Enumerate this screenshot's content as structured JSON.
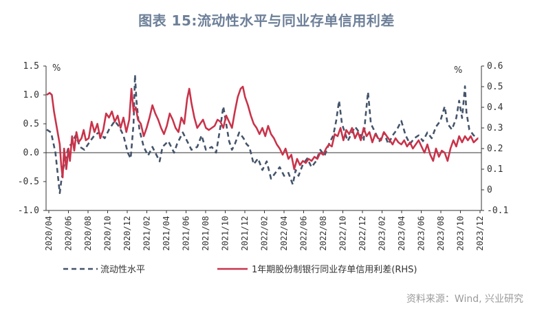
{
  "title": "图表 15:流动性水平与同业存单信用利差",
  "source": "资料来源：Wind, 兴业研究",
  "chart_data": {
    "type": "line",
    "ylabel_left_unit": "%",
    "ylabel_right_unit": "%",
    "ylim_left": [
      -1.0,
      1.5
    ],
    "ylim_right": [
      -0.1,
      0.6
    ],
    "yticks_left": [
      "1.5",
      "1.0",
      "0.5",
      "0.0",
      "-0.5",
      "-1.0"
    ],
    "yticks_right": [
      "0.6",
      "0.5",
      "0.4",
      "0.3",
      "0.2",
      "0.1",
      "0",
      "-0.1"
    ],
    "x_categories": [
      "2020/04",
      "2020/06",
      "2020/08",
      "2020/10",
      "2020/12",
      "2021/02",
      "2021/04",
      "2021/06",
      "2021/08",
      "2021/10",
      "2021/12",
      "2022/02",
      "2022/04",
      "2022/06",
      "2022/08",
      "2022/10",
      "2022/12",
      "2023/02",
      "2023/04",
      "2023/06",
      "2023/08",
      "2023/10",
      "2023/12"
    ],
    "legend_position": "bottom",
    "series": [
      {
        "name": "流动性水平",
        "axis": "left",
        "style": "dashed",
        "color": "#44546a",
        "points": [
          [
            0.0,
            0.4
          ],
          [
            0.3,
            0.35
          ],
          [
            0.6,
            0.0
          ],
          [
            0.9,
            -0.7
          ],
          [
            1.0,
            -0.5
          ],
          [
            1.2,
            -0.2
          ],
          [
            1.5,
            0.1
          ],
          [
            1.7,
            0.15
          ],
          [
            2.0,
            0.3
          ],
          [
            2.3,
            0.1
          ],
          [
            2.6,
            0.05
          ],
          [
            3.0,
            0.2
          ],
          [
            3.3,
            0.3
          ],
          [
            3.6,
            0.35
          ],
          [
            4.0,
            0.25
          ],
          [
            4.3,
            0.4
          ],
          [
            4.7,
            0.55
          ],
          [
            5.0,
            0.45
          ],
          [
            5.3,
            0.3
          ],
          [
            5.6,
            0.0
          ],
          [
            5.8,
            -0.1
          ],
          [
            6.0,
            0.5
          ],
          [
            6.1,
            1.35
          ],
          [
            6.2,
            0.9
          ],
          [
            6.4,
            0.4
          ],
          [
            6.7,
            0.1
          ],
          [
            7.0,
            -0.05
          ],
          [
            7.3,
            0.1
          ],
          [
            7.5,
            0.0
          ],
          [
            7.8,
            -0.15
          ],
          [
            8.0,
            0.1
          ],
          [
            8.4,
            0.2
          ],
          [
            8.8,
            0.0
          ],
          [
            9.0,
            0.15
          ],
          [
            9.4,
            0.35
          ],
          [
            9.7,
            0.2
          ],
          [
            10.0,
            0.05
          ],
          [
            10.4,
            0.1
          ],
          [
            10.7,
            0.3
          ],
          [
            11.0,
            0.05
          ],
          [
            11.4,
            0.1
          ],
          [
            11.7,
            0.0
          ],
          [
            12.0,
            0.45
          ],
          [
            12.2,
            0.8
          ],
          [
            12.4,
            0.5
          ],
          [
            12.6,
            0.2
          ],
          [
            12.8,
            0.05
          ],
          [
            13.0,
            0.15
          ],
          [
            13.3,
            0.35
          ],
          [
            13.6,
            0.25
          ],
          [
            13.8,
            0.15
          ],
          [
            14.0,
            0.1
          ],
          [
            14.3,
            -0.2
          ],
          [
            14.6,
            -0.1
          ],
          [
            14.9,
            -0.3
          ],
          [
            15.2,
            -0.15
          ],
          [
            15.5,
            -0.45
          ],
          [
            15.8,
            -0.35
          ],
          [
            16.1,
            -0.25
          ],
          [
            16.4,
            -0.4
          ],
          [
            16.7,
            -0.35
          ],
          [
            17.0,
            -0.55
          ],
          [
            17.2,
            -0.3
          ],
          [
            17.4,
            -0.4
          ],
          [
            17.7,
            -0.2
          ],
          [
            18.0,
            -0.1
          ],
          [
            18.3,
            -0.25
          ],
          [
            18.6,
            -0.15
          ],
          [
            18.9,
            0.05
          ],
          [
            19.2,
            -0.05
          ],
          [
            19.5,
            0.15
          ],
          [
            19.8,
            0.3
          ],
          [
            20.0,
            0.55
          ],
          [
            20.2,
            0.9
          ],
          [
            20.4,
            0.5
          ],
          [
            20.6,
            0.35
          ],
          [
            20.8,
            0.2
          ],
          [
            21.0,
            0.3
          ],
          [
            21.3,
            0.45
          ],
          [
            21.6,
            0.35
          ],
          [
            21.9,
            0.2
          ],
          [
            22.0,
            0.55
          ],
          [
            22.2,
            1.05
          ],
          [
            22.4,
            0.5
          ],
          [
            22.7,
            0.35
          ],
          [
            23.0,
            0.2
          ],
          [
            23.3,
            0.35
          ],
          [
            23.6,
            0.15
          ],
          [
            23.9,
            0.3
          ],
          [
            24.2,
            0.4
          ],
          [
            24.5,
            0.55
          ],
          [
            24.8,
            0.3
          ],
          [
            25.1,
            0.15
          ],
          [
            25.4,
            0.25
          ],
          [
            25.7,
            0.3
          ],
          [
            26.0,
            0.2
          ],
          [
            26.3,
            0.35
          ],
          [
            26.6,
            0.25
          ],
          [
            26.9,
            0.45
          ],
          [
            27.2,
            0.55
          ],
          [
            27.5,
            0.8
          ],
          [
            27.7,
            0.5
          ],
          [
            28.0,
            0.4
          ],
          [
            28.3,
            0.6
          ],
          [
            28.5,
            0.9
          ],
          [
            28.7,
            0.6
          ],
          [
            28.9,
            1.15
          ],
          [
            29.0,
            0.7
          ],
          [
            29.2,
            0.4
          ],
          [
            29.5,
            0.3
          ],
          [
            29.8,
            0.25
          ]
        ]
      },
      {
        "name": "1年期股份制银行同业存单信用利差(RHS)",
        "axis": "right",
        "style": "solid",
        "color": "#c9334a",
        "points": [
          [
            0.0,
            0.46
          ],
          [
            0.2,
            0.47
          ],
          [
            0.35,
            0.46
          ],
          [
            0.5,
            0.38
          ],
          [
            0.7,
            0.3
          ],
          [
            0.9,
            0.22
          ],
          [
            1.0,
            0.12
          ],
          [
            1.1,
            0.06
          ],
          [
            1.2,
            0.2
          ],
          [
            1.35,
            0.1
          ],
          [
            1.5,
            0.2
          ],
          [
            1.6,
            0.14
          ],
          [
            1.75,
            0.26
          ],
          [
            1.9,
            0.19
          ],
          [
            2.05,
            0.28
          ],
          [
            2.2,
            0.23
          ],
          [
            2.4,
            0.25
          ],
          [
            2.55,
            0.29
          ],
          [
            2.7,
            0.24
          ],
          [
            2.9,
            0.25
          ],
          [
            3.1,
            0.33
          ],
          [
            3.3,
            0.28
          ],
          [
            3.5,
            0.32
          ],
          [
            3.7,
            0.25
          ],
          [
            3.9,
            0.29
          ],
          [
            4.1,
            0.37
          ],
          [
            4.3,
            0.35
          ],
          [
            4.5,
            0.38
          ],
          [
            4.7,
            0.33
          ],
          [
            4.9,
            0.36
          ],
          [
            5.1,
            0.3
          ],
          [
            5.3,
            0.35
          ],
          [
            5.5,
            0.28
          ],
          [
            5.7,
            0.34
          ],
          [
            5.85,
            0.49
          ],
          [
            6.0,
            0.38
          ],
          [
            6.15,
            0.4
          ],
          [
            6.3,
            0.34
          ],
          [
            6.5,
            0.32
          ],
          [
            6.7,
            0.26
          ],
          [
            6.9,
            0.3
          ],
          [
            7.1,
            0.35
          ],
          [
            7.3,
            0.41
          ],
          [
            7.5,
            0.37
          ],
          [
            7.7,
            0.34
          ],
          [
            7.9,
            0.3
          ],
          [
            8.1,
            0.27
          ],
          [
            8.3,
            0.31
          ],
          [
            8.5,
            0.37
          ],
          [
            8.7,
            0.34
          ],
          [
            8.9,
            0.3
          ],
          [
            9.1,
            0.28
          ],
          [
            9.3,
            0.35
          ],
          [
            9.5,
            0.32
          ],
          [
            9.7,
            0.44
          ],
          [
            9.85,
            0.49
          ],
          [
            10.0,
            0.42
          ],
          [
            10.2,
            0.35
          ],
          [
            10.4,
            0.3
          ],
          [
            10.6,
            0.32
          ],
          [
            10.8,
            0.34
          ],
          [
            11.0,
            0.3
          ],
          [
            11.2,
            0.29
          ],
          [
            11.4,
            0.3
          ],
          [
            11.6,
            0.31
          ],
          [
            11.8,
            0.34
          ],
          [
            12.0,
            0.33
          ],
          [
            12.2,
            0.3
          ],
          [
            12.4,
            0.36
          ],
          [
            12.6,
            0.33
          ],
          [
            12.8,
            0.3
          ],
          [
            13.0,
            0.38
          ],
          [
            13.2,
            0.45
          ],
          [
            13.4,
            0.49
          ],
          [
            13.55,
            0.5
          ],
          [
            13.7,
            0.45
          ],
          [
            13.9,
            0.41
          ],
          [
            14.1,
            0.36
          ],
          [
            14.3,
            0.32
          ],
          [
            14.5,
            0.3
          ],
          [
            14.7,
            0.27
          ],
          [
            14.9,
            0.3
          ],
          [
            15.1,
            0.26
          ],
          [
            15.3,
            0.31
          ],
          [
            15.5,
            0.27
          ],
          [
            15.7,
            0.25
          ],
          [
            15.9,
            0.22
          ],
          [
            16.1,
            0.2
          ],
          [
            16.3,
            0.17
          ],
          [
            16.5,
            0.2
          ],
          [
            16.7,
            0.15
          ],
          [
            16.9,
            0.17
          ],
          [
            17.1,
            0.1
          ],
          [
            17.3,
            0.15
          ],
          [
            17.5,
            0.12
          ],
          [
            17.7,
            0.14
          ],
          [
            17.9,
            0.13
          ],
          [
            18.1,
            0.15
          ],
          [
            18.3,
            0.14
          ],
          [
            18.5,
            0.16
          ],
          [
            18.7,
            0.15
          ],
          [
            18.9,
            0.18
          ],
          [
            19.1,
            0.17
          ],
          [
            19.3,
            0.2
          ],
          [
            19.5,
            0.22
          ],
          [
            19.7,
            0.21
          ],
          [
            19.9,
            0.27
          ],
          [
            20.1,
            0.26
          ],
          [
            20.3,
            0.3
          ],
          [
            20.5,
            0.24
          ],
          [
            20.7,
            0.29
          ],
          [
            20.9,
            0.27
          ],
          [
            21.1,
            0.3
          ],
          [
            21.3,
            0.25
          ],
          [
            21.5,
            0.28
          ],
          [
            21.7,
            0.24
          ],
          [
            21.9,
            0.3
          ],
          [
            22.1,
            0.26
          ],
          [
            22.3,
            0.28
          ],
          [
            22.5,
            0.23
          ],
          [
            22.7,
            0.27
          ],
          [
            22.9,
            0.25
          ],
          [
            23.1,
            0.24
          ],
          [
            23.3,
            0.28
          ],
          [
            23.5,
            0.26
          ],
          [
            23.7,
            0.24
          ],
          [
            23.9,
            0.22
          ],
          [
            24.1,
            0.25
          ],
          [
            24.3,
            0.23
          ],
          [
            24.5,
            0.22
          ],
          [
            24.7,
            0.24
          ],
          [
            24.9,
            0.21
          ],
          [
            25.1,
            0.23
          ],
          [
            25.3,
            0.2
          ],
          [
            25.5,
            0.22
          ],
          [
            25.7,
            0.24
          ],
          [
            25.9,
            0.21
          ],
          [
            26.1,
            0.18
          ],
          [
            26.3,
            0.22
          ],
          [
            26.5,
            0.17
          ],
          [
            26.7,
            0.14
          ],
          [
            26.9,
            0.2
          ],
          [
            27.1,
            0.16
          ],
          [
            27.3,
            0.19
          ],
          [
            27.5,
            0.18
          ],
          [
            27.7,
            0.14
          ],
          [
            27.9,
            0.2
          ],
          [
            28.1,
            0.24
          ],
          [
            28.3,
            0.21
          ],
          [
            28.5,
            0.26
          ],
          [
            28.7,
            0.23
          ],
          [
            28.9,
            0.26
          ],
          [
            29.1,
            0.24
          ],
          [
            29.3,
            0.26
          ],
          [
            29.5,
            0.23
          ],
          [
            29.8,
            0.25
          ]
        ]
      }
    ]
  }
}
